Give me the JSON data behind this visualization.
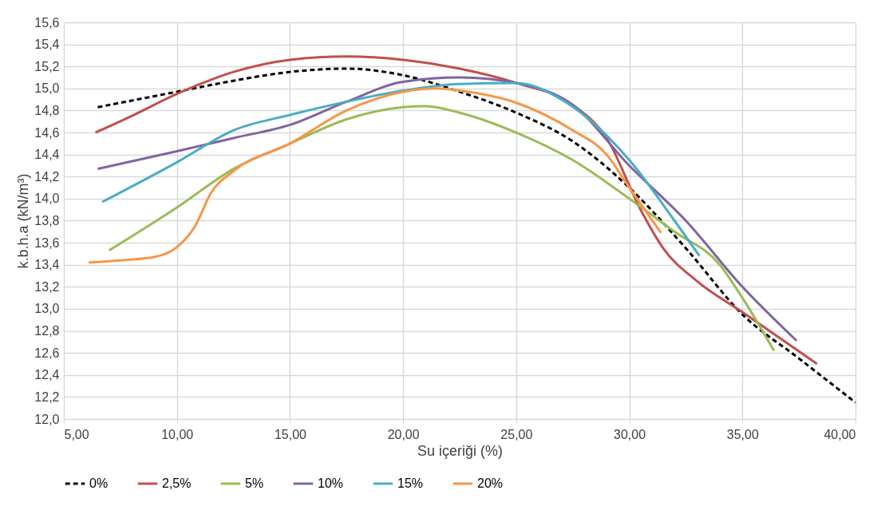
{
  "chart_data": {
    "type": "line",
    "xlabel": "Su içeriği (%)",
    "ylabel": "k.b.h.a (kN/m³)",
    "xlim": [
      5,
      40
    ],
    "xticks": [
      {
        "value": 5,
        "label": "5,00"
      },
      {
        "value": 10,
        "label": "10,00"
      },
      {
        "value": 15,
        "label": "15,00"
      },
      {
        "value": 20,
        "label": "20,00"
      },
      {
        "value": 25,
        "label": "25,00"
      },
      {
        "value": 30,
        "label": "30,00"
      },
      {
        "value": 35,
        "label": "35,00"
      },
      {
        "value": 40,
        "label": "40,00"
      }
    ],
    "ylim": [
      12,
      15.6
    ],
    "yticks": [
      {
        "value": 12,
        "label": "12,0"
      },
      {
        "value": 12.2,
        "label": "12,2"
      },
      {
        "value": 12.4,
        "label": "12,4"
      },
      {
        "value": 12.6,
        "label": "12,6"
      },
      {
        "value": 12.8,
        "label": "12,8"
      },
      {
        "value": 13,
        "label": "13,0"
      },
      {
        "value": 13.2,
        "label": "13,2"
      },
      {
        "value": 13.4,
        "label": "13,4"
      },
      {
        "value": 13.6,
        "label": "13,6"
      },
      {
        "value": 13.8,
        "label": "13,8"
      },
      {
        "value": 14,
        "label": "14,0"
      },
      {
        "value": 14.2,
        "label": "14,2"
      },
      {
        "value": 14.4,
        "label": "14,4"
      },
      {
        "value": 14.6,
        "label": "14,6"
      },
      {
        "value": 14.8,
        "label": "14,8"
      },
      {
        "value": 15,
        "label": "15,0"
      },
      {
        "value": 15.2,
        "label": "15,2"
      },
      {
        "value": 15.4,
        "label": "15,4"
      },
      {
        "value": 15.6,
        "label": "15,6"
      }
    ],
    "grid": true,
    "legend": "bottom",
    "marker": "none",
    "series": [
      {
        "name": "0%",
        "color": "#000000",
        "line_style": "dashed",
        "x": [
          6.5,
          10,
          12.5,
          15,
          17.5,
          20,
          22.5,
          25,
          27.5,
          30,
          32.5,
          35,
          37.5,
          40
        ],
        "values": [
          14.83,
          14.97,
          15.07,
          15.15,
          15.18,
          15.12,
          14.97,
          14.78,
          14.52,
          14.1,
          13.55,
          12.95,
          12.55,
          12.15
        ]
      },
      {
        "name": "2,5%",
        "color": "#c0504d",
        "line_style": "solid",
        "x": [
          6.4,
          8,
          10,
          12.5,
          15,
          17.5,
          20,
          22.5,
          25,
          27.5,
          29,
          30.5,
          31.5,
          33,
          35,
          38.3
        ],
        "values": [
          14.6,
          14.75,
          14.95,
          15.15,
          15.26,
          15.29,
          15.26,
          15.18,
          15.05,
          14.85,
          14.55,
          13.9,
          13.55,
          13.25,
          12.97,
          12.5
        ]
      },
      {
        "name": "5%",
        "color": "#9bbb59",
        "line_style": "solid",
        "x": [
          7,
          10,
          12.5,
          15,
          17.5,
          20,
          21,
          22.5,
          25,
          27.5,
          30,
          32,
          34,
          35,
          36.4
        ],
        "values": [
          13.53,
          13.92,
          14.27,
          14.5,
          14.72,
          14.83,
          14.84,
          14.78,
          14.6,
          14.35,
          14.0,
          13.7,
          13.4,
          13.1,
          12.62
        ]
      },
      {
        "name": "10%",
        "color": "#8064a2",
        "line_style": "solid",
        "x": [
          6.5,
          10,
          12.5,
          15,
          17.5,
          20,
          22.5,
          25,
          27.5,
          30,
          32.5,
          35,
          37.4
        ],
        "values": [
          14.27,
          14.43,
          14.55,
          14.67,
          14.88,
          15.06,
          15.1,
          15.05,
          14.85,
          14.3,
          13.8,
          13.2,
          12.71
        ]
      },
      {
        "name": "15%",
        "color": "#4bacc6",
        "line_style": "solid",
        "x": [
          6.7,
          10,
          12.5,
          15,
          17.5,
          20,
          22.5,
          25,
          27,
          30,
          32,
          33.1
        ],
        "values": [
          13.97,
          14.33,
          14.62,
          14.76,
          14.88,
          14.98,
          15.04,
          15.05,
          14.9,
          14.35,
          13.8,
          13.48
        ]
      },
      {
        "name": "20%",
        "color": "#f79646",
        "line_style": "solid",
        "x": [
          6.1,
          7.5,
          9,
          10,
          10.8,
          11.5,
          12.5,
          15,
          17.5,
          20,
          21.5,
          22.5,
          25,
          27.5,
          29,
          30,
          31.4
        ],
        "values": [
          13.42,
          13.44,
          13.47,
          13.56,
          13.75,
          14.05,
          14.25,
          14.5,
          14.8,
          14.97,
          15.0,
          14.98,
          14.87,
          14.62,
          14.4,
          14.1,
          13.69
        ]
      }
    ]
  }
}
